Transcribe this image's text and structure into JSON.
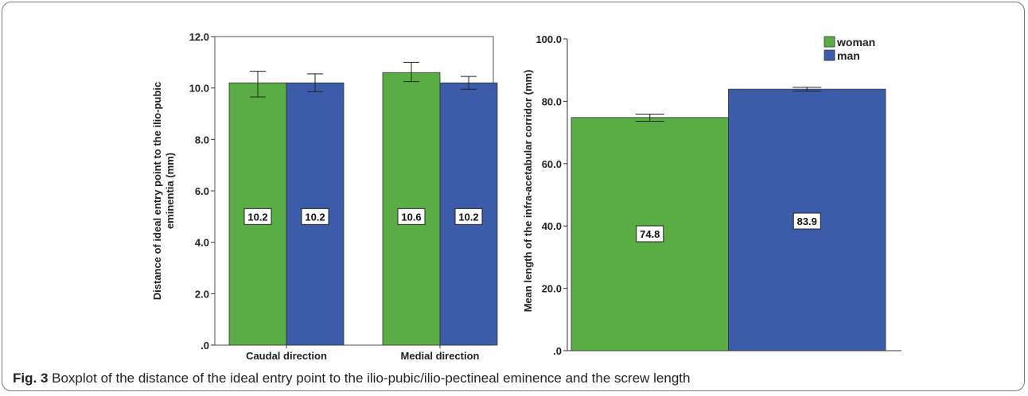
{
  "caption": {
    "label": "Fig. 3",
    "text": "Boxplot of the distance of the ideal entry point to the ilio-pubic/ilio-pectineal eminence and the screw length"
  },
  "colors": {
    "woman": "#5aad45",
    "man": "#3c5ba8"
  },
  "chart_data": [
    {
      "type": "bar",
      "ylabel": "Distance of ideal entry point to the ilio-pubic eminentia (mm)",
      "ylabel_lines": [
        "Distance of ideal entry point to the ilio-pubic",
        "eminentia (mm)"
      ],
      "ylim": [
        0,
        12
      ],
      "yticks": [
        ".0",
        "2.0",
        "4.0",
        "6.0",
        "8.0",
        "10.0",
        "12.0"
      ],
      "categories": [
        "Caudal direction",
        "Medial direction"
      ],
      "legend": "none",
      "series": [
        {
          "name": "woman",
          "values": [
            10.2,
            10.6
          ],
          "labels": [
            "10.2",
            "10.6"
          ],
          "err_low": [
            9.65,
            10.25
          ],
          "err_high": [
            10.65,
            11.0
          ]
        },
        {
          "name": "man",
          "values": [
            10.2,
            10.2
          ],
          "labels": [
            "10.2",
            "10.2"
          ],
          "err_low": [
            9.85,
            9.95
          ],
          "err_high": [
            10.55,
            10.45
          ]
        }
      ]
    },
    {
      "type": "bar",
      "ylabel": "Mean length of the infra-acetabular corridor (mm)",
      "ylim": [
        0,
        100
      ],
      "yticks": [
        ".0",
        "20.0",
        "40.0",
        "60.0",
        "80.0",
        "100.0"
      ],
      "categories": [
        ""
      ],
      "legend": "top-right",
      "series": [
        {
          "name": "woman",
          "values": [
            74.8
          ],
          "labels": [
            "74.8"
          ],
          "err_low": [
            73.6
          ],
          "err_high": [
            75.9
          ]
        },
        {
          "name": "man",
          "values": [
            83.9
          ],
          "labels": [
            "83.9"
          ],
          "err_low": [
            83.3
          ],
          "err_high": [
            84.5
          ]
        }
      ]
    }
  ]
}
